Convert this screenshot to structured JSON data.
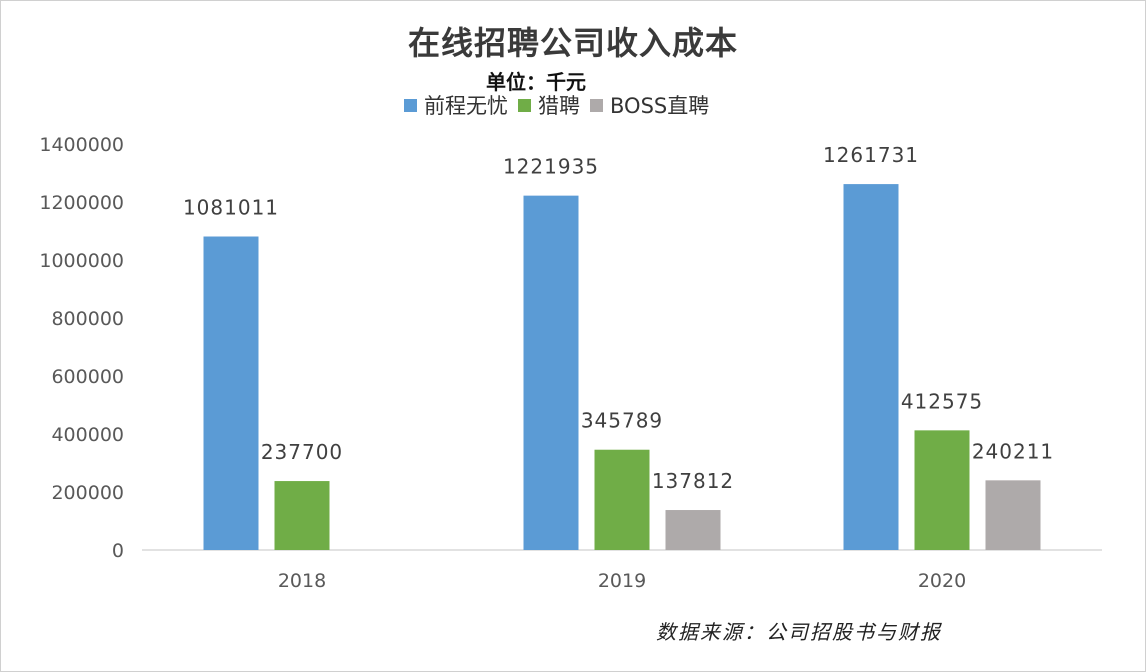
{
  "chart_data": {
    "type": "bar",
    "title": "在线招聘公司收入成本",
    "subtitle": "单位：千元",
    "categories": [
      "2018",
      "2019",
      "2020"
    ],
    "series": [
      {
        "name": "前程无忧",
        "color": "#5b9bd5",
        "values": [
          1081011,
          1221935,
          1261731
        ]
      },
      {
        "name": "猎聘",
        "color": "#70ad47",
        "values": [
          237700,
          345789,
          412575
        ]
      },
      {
        "name": "BOSS直聘",
        "color": "#aeaaaa",
        "values": [
          null,
          137812,
          240211
        ]
      }
    ],
    "y_ticks": [
      "0",
      "200000",
      "400000",
      "600000",
      "800000",
      "1000000",
      "1200000",
      "1400000"
    ],
    "ylim": [
      0,
      1400000
    ],
    "grid": false,
    "legend_position": "top"
  },
  "source_note": "数据来源：公司招股书与财报"
}
